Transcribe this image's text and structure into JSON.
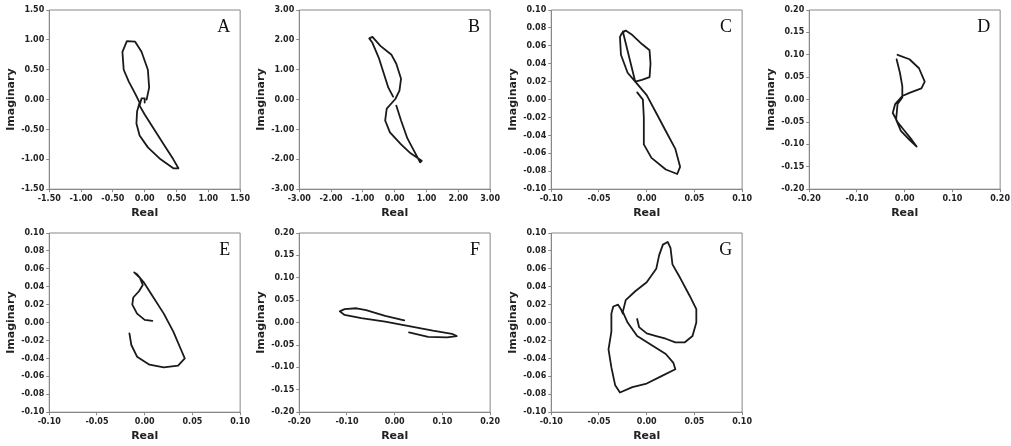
{
  "chart_data": [
    {
      "type": "line",
      "annotations": [
        "A"
      ],
      "xlabel": "Real",
      "ylabel": "Imaginary",
      "marker": "none",
      "line_style": "solid",
      "xlim": [
        -1.5,
        1.5
      ],
      "ylim": [
        -1.5,
        1.5
      ],
      "xticks": [
        {
          "value": -1.5,
          "label": "-1.50"
        },
        {
          "value": -1,
          "label": "-1.00"
        },
        {
          "value": -0.5,
          "label": "-0.50"
        },
        {
          "value": 0,
          "label": "0.00"
        },
        {
          "value": 0.5,
          "label": "0.50"
        },
        {
          "value": 1,
          "label": "1.00"
        },
        {
          "value": 1.5,
          "label": "1.50"
        }
      ],
      "yticks": [
        {
          "value": -1.5,
          "label": "-1.50"
        },
        {
          "value": -1,
          "label": "-1.00"
        },
        {
          "value": -0.5,
          "label": "-0.50"
        },
        {
          "value": 0,
          "label": "0.00"
        },
        {
          "value": 0.5,
          "label": "0.50"
        },
        {
          "value": 1,
          "label": "1.00"
        },
        {
          "value": 1.5,
          "label": "1.50"
        }
      ],
      "series": [
        {
          "color": "#1a1a1a",
          "x": [
            0.03,
            0.07,
            0.05,
            -0.05,
            -0.15,
            -0.28,
            -0.35,
            -0.33,
            -0.25,
            -0.15,
            -0.08,
            -0.12,
            -0.13,
            -0.08,
            0.05,
            0.25,
            0.45,
            0.53,
            0.45,
            0.3,
            0.15,
            0,
            -0.08,
            -0.05,
            0,
            0
          ],
          "values": [
            0,
            0.2,
            0.5,
            0.8,
            0.97,
            0.98,
            0.8,
            0.5,
            0.3,
            0.1,
            -0.05,
            -0.2,
            -0.4,
            -0.6,
            -0.8,
            -1,
            -1.15,
            -1.15,
            -1,
            -0.75,
            -0.5,
            -0.25,
            -0.1,
            0.02,
            0.02,
            -0.05
          ]
        }
      ]
    },
    {
      "type": "line",
      "annotations": [
        "B"
      ],
      "xlabel": "Real",
      "ylabel": "Imaginary",
      "marker": "none",
      "line_style": "solid",
      "xlim": [
        -3,
        3
      ],
      "ylim": [
        -3,
        3
      ],
      "xticks": [
        {
          "value": -3,
          "label": "-3.00"
        },
        {
          "value": -2,
          "label": "-2.00"
        },
        {
          "value": -1,
          "label": "-1.00"
        },
        {
          "value": 0,
          "label": "0.00"
        },
        {
          "value": 1,
          "label": "1.00"
        },
        {
          "value": 2,
          "label": "2.00"
        },
        {
          "value": 3,
          "label": "3.00"
        }
      ],
      "yticks": [
        {
          "value": -3,
          "label": "-3.00"
        },
        {
          "value": -2,
          "label": "-2.00"
        },
        {
          "value": -1,
          "label": "-1.00"
        },
        {
          "value": 0,
          "label": "0.00"
        },
        {
          "value": 1,
          "label": "1.00"
        },
        {
          "value": 2,
          "label": "2.00"
        },
        {
          "value": 3,
          "label": "3.00"
        }
      ],
      "series": [
        {
          "color": "#1a1a1a",
          "x": [
            -0.05,
            -0.2,
            -0.35,
            -0.5,
            -0.7,
            -0.8,
            -0.7,
            -0.45,
            -0.1,
            0.05,
            0.2,
            0.15,
            0.02,
            -0.25,
            -0.3,
            -0.15,
            0.2,
            0.5,
            0.85,
            0.8,
            0.6,
            0.4,
            0.2,
            0.05
          ],
          "values": [
            0.1,
            0.4,
            0.9,
            1.4,
            1.9,
            2.05,
            2.1,
            1.8,
            1.5,
            1.2,
            0.7,
            0.3,
            0.02,
            -0.3,
            -0.7,
            -1.1,
            -1.5,
            -1.8,
            -2.05,
            -2.1,
            -1.7,
            -1.3,
            -0.7,
            -0.2
          ]
        }
      ]
    },
    {
      "type": "line",
      "annotations": [
        "C"
      ],
      "xlabel": "Real",
      "ylabel": "Imaginary",
      "marker": "none",
      "line_style": "solid",
      "xlim": [
        -0.1,
        0.1
      ],
      "ylim": [
        -0.1,
        0.1
      ],
      "xticks": [
        {
          "value": -0.1,
          "label": "-0.10"
        },
        {
          "value": -0.05,
          "label": "-0.05"
        },
        {
          "value": 0,
          "label": "0.00"
        },
        {
          "value": 0.05,
          "label": "0.05"
        },
        {
          "value": 0.1,
          "label": "0.10"
        }
      ],
      "yticks": [
        {
          "value": -0.1,
          "label": "-0.10"
        },
        {
          "value": -0.08,
          "label": "-0.08"
        },
        {
          "value": -0.06,
          "label": "-0.06"
        },
        {
          "value": -0.04,
          "label": "-0.04"
        },
        {
          "value": -0.02,
          "label": "-0.02"
        },
        {
          "value": 0,
          "label": "0.00"
        },
        {
          "value": 0.02,
          "label": "0.02"
        },
        {
          "value": 0.04,
          "label": "0.04"
        },
        {
          "value": 0.06,
          "label": "0.06"
        },
        {
          "value": 0.08,
          "label": "0.08"
        },
        {
          "value": 0.1,
          "label": "0.10"
        }
      ],
      "series": [
        {
          "color": "#1a1a1a",
          "x": [
            -0.022,
            -0.026,
            -0.028,
            -0.027,
            -0.02,
            -0.012,
            -0.005,
            0.003,
            0.004,
            0.003,
            -0.005,
            -0.015,
            -0.022,
            -0.025,
            -0.012,
            0,
            0.01,
            0.02,
            0.03,
            0.035,
            0.032,
            0.02,
            0.005,
            -0.003,
            -0.003,
            -0.004,
            -0.01
          ],
          "values": [
            0.077,
            0.074,
            0.07,
            0.05,
            0.03,
            0.02,
            0.022,
            0.025,
            0.04,
            0.055,
            0.062,
            0.072,
            0.077,
            0.076,
            0.02,
            0.005,
            -0.015,
            -0.035,
            -0.055,
            -0.075,
            -0.083,
            -0.078,
            -0.065,
            -0.05,
            -0.02,
            0,
            0.008
          ]
        }
      ]
    },
    {
      "type": "line",
      "annotations": [
        "D"
      ],
      "xlabel": "Real",
      "ylabel": "Imaginary",
      "marker": "none",
      "line_style": "solid",
      "xlim": [
        -0.2,
        0.2
      ],
      "ylim": [
        -0.2,
        0.2
      ],
      "xticks": [
        {
          "value": -0.2,
          "label": "-0.20"
        },
        {
          "value": -0.1,
          "label": "-0.10"
        },
        {
          "value": 0,
          "label": "0.00"
        },
        {
          "value": 0.1,
          "label": "0.10"
        },
        {
          "value": 0.2,
          "label": "0.20"
        }
      ],
      "yticks": [
        {
          "value": -0.2,
          "label": "-0.20"
        },
        {
          "value": -0.15,
          "label": "-0.15"
        },
        {
          "value": -0.1,
          "label": "-0.10"
        },
        {
          "value": -0.05,
          "label": "-0.05"
        },
        {
          "value": 0,
          "label": "0.00"
        },
        {
          "value": 0.05,
          "label": "0.05"
        },
        {
          "value": 0.1,
          "label": "0.10"
        },
        {
          "value": 0.15,
          "label": "0.15"
        },
        {
          "value": 0.2,
          "label": "0.20"
        }
      ],
      "series": [
        {
          "color": "#1a1a1a",
          "x": [
            -0.015,
            0.01,
            0.03,
            0.042,
            0.035,
            0.01,
            -0.005,
            -0.02,
            -0.025,
            -0.015,
            0,
            0.015,
            0.025,
            0.01,
            -0.008,
            -0.018,
            -0.015,
            -0.005,
            -0.005,
            -0.01,
            -0.017
          ],
          "values": [
            0.1,
            0.09,
            0.07,
            0.04,
            0.025,
            0.015,
            0.008,
            -0.01,
            -0.03,
            -0.05,
            -0.07,
            -0.09,
            -0.105,
            -0.09,
            -0.07,
            -0.045,
            -0.01,
            0.005,
            0.03,
            0.06,
            0.09
          ]
        }
      ]
    },
    {
      "type": "line",
      "annotations": [
        "E"
      ],
      "xlabel": "Real",
      "ylabel": "Imaginary",
      "marker": "none",
      "line_style": "solid",
      "xlim": [
        -0.1,
        0.1
      ],
      "ylim": [
        -0.1,
        0.1
      ],
      "xticks": [
        {
          "value": -0.1,
          "label": "-0.10"
        },
        {
          "value": -0.05,
          "label": "-0.05"
        },
        {
          "value": 0,
          "label": "0.00"
        },
        {
          "value": 0.05,
          "label": "0.05"
        },
        {
          "value": 0.1,
          "label": "0.10"
        }
      ],
      "yticks": [
        {
          "value": -0.1,
          "label": "-0.10"
        },
        {
          "value": -0.08,
          "label": "-0.08"
        },
        {
          "value": -0.06,
          "label": "-0.06"
        },
        {
          "value": -0.04,
          "label": "-0.04"
        },
        {
          "value": -0.02,
          "label": "-0.02"
        },
        {
          "value": 0,
          "label": "0.00"
        },
        {
          "value": 0.02,
          "label": "0.02"
        },
        {
          "value": 0.04,
          "label": "0.04"
        },
        {
          "value": 0.06,
          "label": "0.06"
        },
        {
          "value": 0.08,
          "label": "0.08"
        },
        {
          "value": 0.1,
          "label": "0.10"
        }
      ],
      "series": [
        {
          "color": "#1a1a1a",
          "x": [
            0.008,
            0,
            -0.008,
            -0.013,
            -0.012,
            -0.006,
            -0.002,
            -0.005,
            -0.011,
            -0.008,
            -0.001,
            0.008,
            0.02,
            0.03,
            0.038,
            0.042,
            0.035,
            0.02,
            0.005,
            -0.008,
            -0.014,
            -0.016
          ],
          "values": [
            0.002,
            0.003,
            0.01,
            0.02,
            0.028,
            0.035,
            0.042,
            0.05,
            0.056,
            0.054,
            0.045,
            0.03,
            0.01,
            -0.01,
            -0.03,
            -0.04,
            -0.048,
            -0.05,
            -0.047,
            -0.038,
            -0.025,
            -0.012
          ]
        }
      ]
    },
    {
      "type": "line",
      "annotations": [
        "F"
      ],
      "xlabel": "Real",
      "ylabel": "Imaginary",
      "marker": "none",
      "line_style": "solid",
      "xlim": [
        -0.2,
        0.2
      ],
      "ylim": [
        -0.2,
        0.2
      ],
      "xticks": [
        {
          "value": -0.2,
          "label": "-0.20"
        },
        {
          "value": -0.1,
          "label": "-0.10"
        },
        {
          "value": 0,
          "label": "0.00"
        },
        {
          "value": 0.1,
          "label": "0.10"
        },
        {
          "value": 0.2,
          "label": "0.20"
        }
      ],
      "yticks": [
        {
          "value": -0.2,
          "label": "-0.20"
        },
        {
          "value": -0.15,
          "label": "-0.15"
        },
        {
          "value": -0.1,
          "label": "-0.10"
        },
        {
          "value": -0.05,
          "label": "-0.05"
        },
        {
          "value": 0,
          "label": "0.00"
        },
        {
          "value": 0.05,
          "label": "0.05"
        },
        {
          "value": 0.1,
          "label": "0.10"
        },
        {
          "value": 0.15,
          "label": "0.15"
        },
        {
          "value": 0.2,
          "label": "0.20"
        }
      ],
      "series": [
        {
          "color": "#1a1a1a",
          "x": [
            0.02,
            -0.02,
            -0.06,
            -0.08,
            -0.105,
            -0.115,
            -0.105,
            -0.07,
            -0.02,
            0.03,
            0.08,
            0.12,
            0.13,
            0.11,
            0.07,
            0.03
          ],
          "values": [
            0.005,
            0.015,
            0.028,
            0.032,
            0.03,
            0.025,
            0.017,
            0.01,
            0.002,
            -0.008,
            -0.018,
            -0.025,
            -0.03,
            -0.033,
            -0.032,
            -0.022
          ]
        }
      ]
    },
    {
      "type": "line",
      "annotations": [
        "G"
      ],
      "xlabel": "Real",
      "ylabel": "Imaginary",
      "marker": "none",
      "line_style": "solid",
      "xlim": [
        -0.1,
        0.1
      ],
      "ylim": [
        -0.1,
        0.1
      ],
      "xticks": [
        {
          "value": -0.1,
          "label": "-0.10"
        },
        {
          "value": -0.05,
          "label": "-0.05"
        },
        {
          "value": 0,
          "label": "0.00"
        },
        {
          "value": 0.05,
          "label": "0.05"
        },
        {
          "value": 0.1,
          "label": "0.10"
        }
      ],
      "yticks": [
        {
          "value": -0.1,
          "label": "-0.10"
        },
        {
          "value": -0.08,
          "label": "-0.08"
        },
        {
          "value": -0.06,
          "label": "-0.06"
        },
        {
          "value": -0.04,
          "label": "-0.04"
        },
        {
          "value": -0.02,
          "label": "-0.02"
        },
        {
          "value": 0,
          "label": "0.00"
        },
        {
          "value": 0.02,
          "label": "0.02"
        },
        {
          "value": 0.04,
          "label": "0.04"
        },
        {
          "value": 0.06,
          "label": "0.06"
        },
        {
          "value": 0.08,
          "label": "0.08"
        },
        {
          "value": 0.1,
          "label": "0.10"
        }
      ],
      "series": [
        {
          "color": "#1a1a1a",
          "x": [
            -0.01,
            -0.008,
            0,
            0.01,
            0.02,
            0.03,
            0.04,
            0.048,
            0.052,
            0.052,
            0.045,
            0.035,
            0.027,
            0.025,
            0.022,
            0.017,
            0.013,
            0.01,
            0,
            -0.012,
            -0.022,
            -0.025,
            -0.02,
            -0.01,
            0.005,
            0.02,
            0.028,
            0.03,
            0.015,
            0,
            -0.015,
            -0.028,
            -0.033,
            -0.037,
            -0.04,
            -0.037,
            -0.037,
            -0.035,
            -0.03,
            -0.027,
            -0.025
          ],
          "values": [
            0.004,
            -0.005,
            -0.012,
            -0.015,
            -0.018,
            -0.022,
            -0.022,
            -0.015,
            0,
            0.015,
            0.03,
            0.05,
            0.065,
            0.083,
            0.09,
            0.087,
            0.075,
            0.06,
            0.045,
            0.035,
            0.025,
            0.012,
            0,
            -0.015,
            -0.025,
            -0.035,
            -0.045,
            -0.052,
            -0.06,
            -0.068,
            -0.072,
            -0.078,
            -0.07,
            -0.05,
            -0.03,
            -0.01,
            0.01,
            0.018,
            0.02,
            0.015,
            0.01
          ]
        }
      ]
    }
  ]
}
